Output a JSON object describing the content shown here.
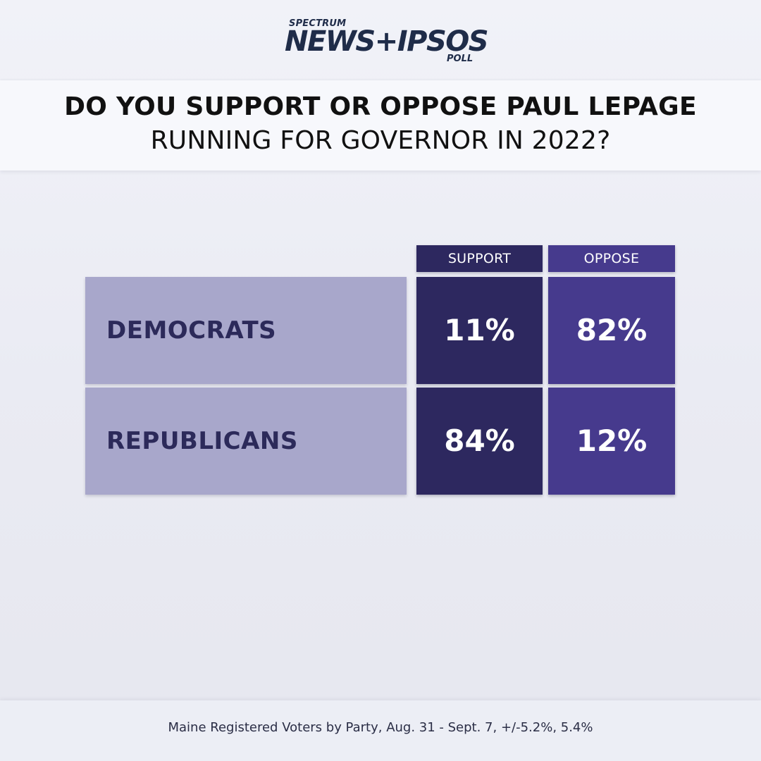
{
  "brand": {
    "top": "SPECTRUM",
    "main": "NEWS+IPSOS",
    "bottom": "POLL"
  },
  "title": {
    "line1": "DO YOU SUPPORT OR OPPOSE PAUL LEPAGE",
    "line2": "RUNNING FOR GOVERNOR IN 2022?"
  },
  "chart_data": {
    "type": "table",
    "columns": [
      "SUPPORT",
      "OPPOSE"
    ],
    "rows": [
      {
        "label": "DEMOCRATS",
        "values": [
          "11%",
          "82%"
        ]
      },
      {
        "label": "REPUBLICANS",
        "values": [
          "84%",
          "12%"
        ]
      }
    ]
  },
  "colors": {
    "support": "#2d285f",
    "oppose": "#463a8d",
    "row_label_bg": "#a8a7cb",
    "row_label_text": "#2c2a5a"
  },
  "footer": {
    "note": "Maine Registered Voters by Party, Aug. 31 - Sept. 7, +/-5.2%, 5.4%"
  }
}
